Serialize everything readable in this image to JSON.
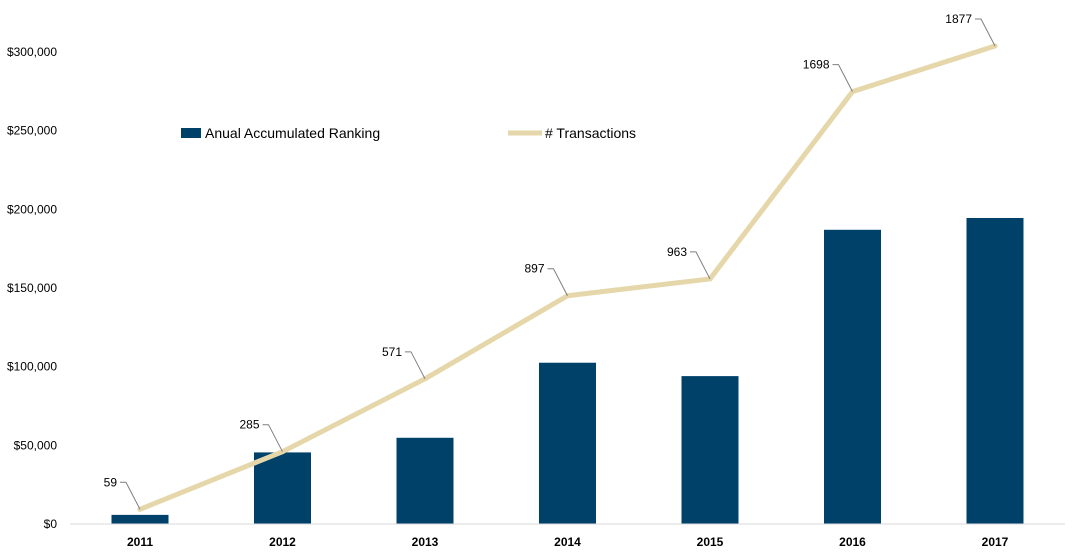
{
  "chart_data": {
    "type": "bar+line",
    "categories": [
      "2011",
      "2012",
      "2013",
      "2014",
      "2015",
      "2016",
      "2017"
    ],
    "series": [
      {
        "name": "Anual Accumulated Ranking",
        "type": "bar",
        "color": "#00416A",
        "values": [
          5800,
          45500,
          54800,
          102500,
          94000,
          187000,
          194500
        ]
      },
      {
        "name": "# Transactions",
        "type": "line",
        "color": "#E5D7A9",
        "values": [
          59,
          285,
          571,
          897,
          963,
          1698,
          1877
        ],
        "labels": [
          "59",
          "285",
          "571",
          "897",
          "963",
          "1698",
          "1877"
        ]
      }
    ],
    "y_ticks": [
      "$0",
      "$50,000",
      "$100,000",
      "$150,000",
      "$200,000",
      "$250,000",
      "$300,000"
    ],
    "ylim": [
      0,
      300000
    ],
    "legend_position": "top-left",
    "grid": false
  }
}
